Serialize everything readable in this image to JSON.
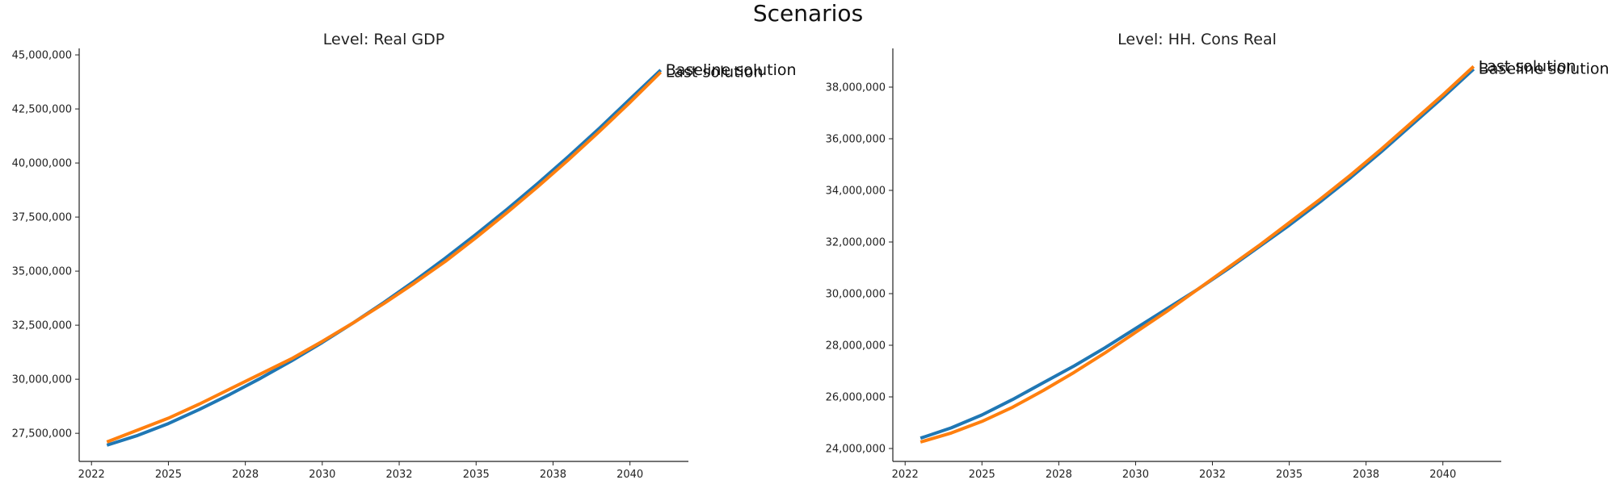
{
  "figure": {
    "suptitle": "Scenarios"
  },
  "chart_data": [
    {
      "type": "line",
      "title": "Level: Real GDP",
      "xlabel": "",
      "ylabel": "",
      "xlim": [
        2021.6,
        2041.4
      ],
      "ylim": [
        26200000,
        45300000
      ],
      "x": [
        2022.5,
        2023.5,
        2024.5,
        2025.5,
        2026.5,
        2027.5,
        2028.5,
        2029.5,
        2030.5,
        2031.5,
        2032.5,
        2033.5,
        2034.5,
        2035.5,
        2036.5,
        2037.5,
        2038.5,
        2039.5,
        2040.5
      ],
      "x_ticks": [
        2022,
        2025,
        2028,
        2030,
        2032,
        2035,
        2038,
        2040
      ],
      "x_tick_positions": [
        2022.0,
        2024.5,
        2027.0,
        2029.5,
        2032.0,
        2034.5,
        2037.0,
        2039.5
      ],
      "y_ticks": [
        27500000,
        30000000,
        32500000,
        35000000,
        37500000,
        40000000,
        42500000,
        45000000
      ],
      "y_tick_labels": [
        "27,500,000",
        "30,000,000",
        "32,500,000",
        "35,000,000",
        "37,500,000",
        "40,000,000",
        "42,500,000",
        "45,000,000"
      ],
      "grid": false,
      "legend": "none",
      "series": [
        {
          "name": "Baseline solution",
          "color": "#1f77b4",
          "values": [
            26950000,
            27400000,
            27950000,
            28600000,
            29300000,
            30050000,
            30850000,
            31700000,
            32600000,
            33550000,
            34550000,
            35600000,
            36700000,
            37850000,
            39050000,
            40300000,
            41600000,
            42950000,
            44300000
          ]
        },
        {
          "name": "Last solution",
          "color": "#ff7f0e",
          "values": [
            27100000,
            27650000,
            28200000,
            28850000,
            29550000,
            30250000,
            30950000,
            31750000,
            32600000,
            33500000,
            34450000,
            35450000,
            36550000,
            37700000,
            38900000,
            40150000,
            41450000,
            42800000,
            44200000
          ]
        }
      ]
    },
    {
      "type": "line",
      "title": "Level: HH. Cons Real",
      "xlabel": "",
      "ylabel": "",
      "xlim": [
        2021.6,
        2041.4
      ],
      "ylim": [
        23500000,
        39500000
      ],
      "x": [
        2022.5,
        2023.5,
        2024.5,
        2025.5,
        2026.5,
        2027.5,
        2028.5,
        2029.5,
        2030.5,
        2031.5,
        2032.5,
        2033.5,
        2034.5,
        2035.5,
        2036.5,
        2037.5,
        2038.5,
        2039.5,
        2040.5
      ],
      "x_ticks": [
        2022,
        2025,
        2028,
        2030,
        2032,
        2035,
        2038,
        2040
      ],
      "x_tick_positions": [
        2022.0,
        2024.5,
        2027.0,
        2029.5,
        2032.0,
        2034.5,
        2037.0,
        2039.5
      ],
      "y_ticks": [
        24000000,
        26000000,
        28000000,
        30000000,
        32000000,
        34000000,
        36000000,
        38000000
      ],
      "y_tick_labels": [
        "24,000,000",
        "26,000,000",
        "28,000,000",
        "30,000,000",
        "32,000,000",
        "34,000,000",
        "36,000,000",
        "38,000,000"
      ],
      "grid": false,
      "legend": "none",
      "series": [
        {
          "name": "Baseline solution",
          "color": "#1f77b4",
          "values": [
            24400000,
            24800000,
            25300000,
            25900000,
            26550000,
            27200000,
            27900000,
            28650000,
            29400000,
            30150000,
            30950000,
            31800000,
            32650000,
            33550000,
            34500000,
            35500000,
            36550000,
            37600000,
            38700000
          ]
        },
        {
          "name": "Last solution",
          "color": "#ff7f0e",
          "values": [
            24250000,
            24600000,
            25050000,
            25600000,
            26250000,
            26950000,
            27700000,
            28500000,
            29300000,
            30150000,
            31000000,
            31850000,
            32750000,
            33650000,
            34600000,
            35600000,
            36650000,
            37700000,
            38800000
          ]
        }
      ]
    }
  ]
}
